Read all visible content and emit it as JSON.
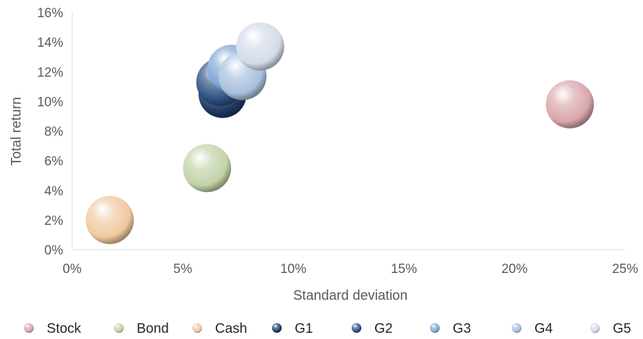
{
  "chart_data": {
    "type": "scatter",
    "xlabel": "Standard deviation",
    "ylabel": "Total return",
    "xlim": [
      0,
      25
    ],
    "ylim": [
      0,
      16
    ],
    "x_ticks": [
      "0%",
      "5%",
      "10%",
      "15%",
      "20%",
      "25%"
    ],
    "y_ticks": [
      "0%",
      "2%",
      "4%",
      "6%",
      "8%",
      "10%",
      "12%",
      "14%",
      "16%"
    ],
    "grid": false,
    "legend_position": "bottom",
    "series": [
      {
        "name": "Stock",
        "x": 22.5,
        "y": 9.8,
        "color": "#d9a6ab"
      },
      {
        "name": "Bond",
        "x": 6.1,
        "y": 5.5,
        "color": "#c3d3a8"
      },
      {
        "name": "Cash",
        "x": 1.7,
        "y": 2.0,
        "color": "#f0c9a0"
      },
      {
        "name": "G1",
        "x": 6.8,
        "y": 10.5,
        "color": "#1f3a66"
      },
      {
        "name": "G2",
        "x": 6.7,
        "y": 11.3,
        "color": "#2e5181"
      },
      {
        "name": "G3",
        "x": 7.2,
        "y": 12.2,
        "color": "#7fa6d4"
      },
      {
        "name": "G4",
        "x": 7.7,
        "y": 11.7,
        "color": "#a9c0dc"
      },
      {
        "name": "G5",
        "x": 8.5,
        "y": 13.7,
        "color": "#d3dce8"
      }
    ]
  }
}
